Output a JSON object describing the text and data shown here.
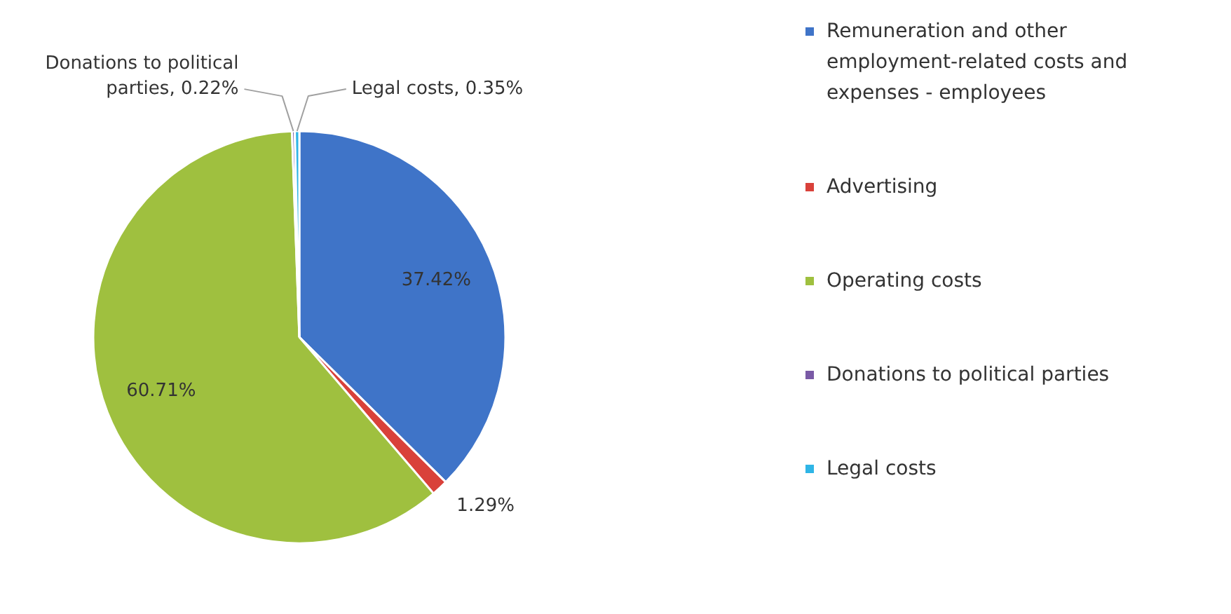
{
  "chart_data": {
    "type": "pie",
    "categories": [
      "Remuneration and other employment-related costs and expenses - employees",
      "Advertising",
      "Operating costs",
      "Donations to political parties",
      "Legal costs"
    ],
    "values": [
      37.42,
      1.29,
      60.71,
      0.22,
      0.35
    ],
    "colors": [
      "#3f74c8",
      "#d9413a",
      "#9fc03f",
      "#7a5aa6",
      "#2fb5e6"
    ],
    "value_labels": [
      "37.42%",
      "1.29%",
      "60.71%",
      "Donations to political parties, 0.22%",
      "Legal costs, 0.35%"
    ],
    "legend": "right"
  }
}
